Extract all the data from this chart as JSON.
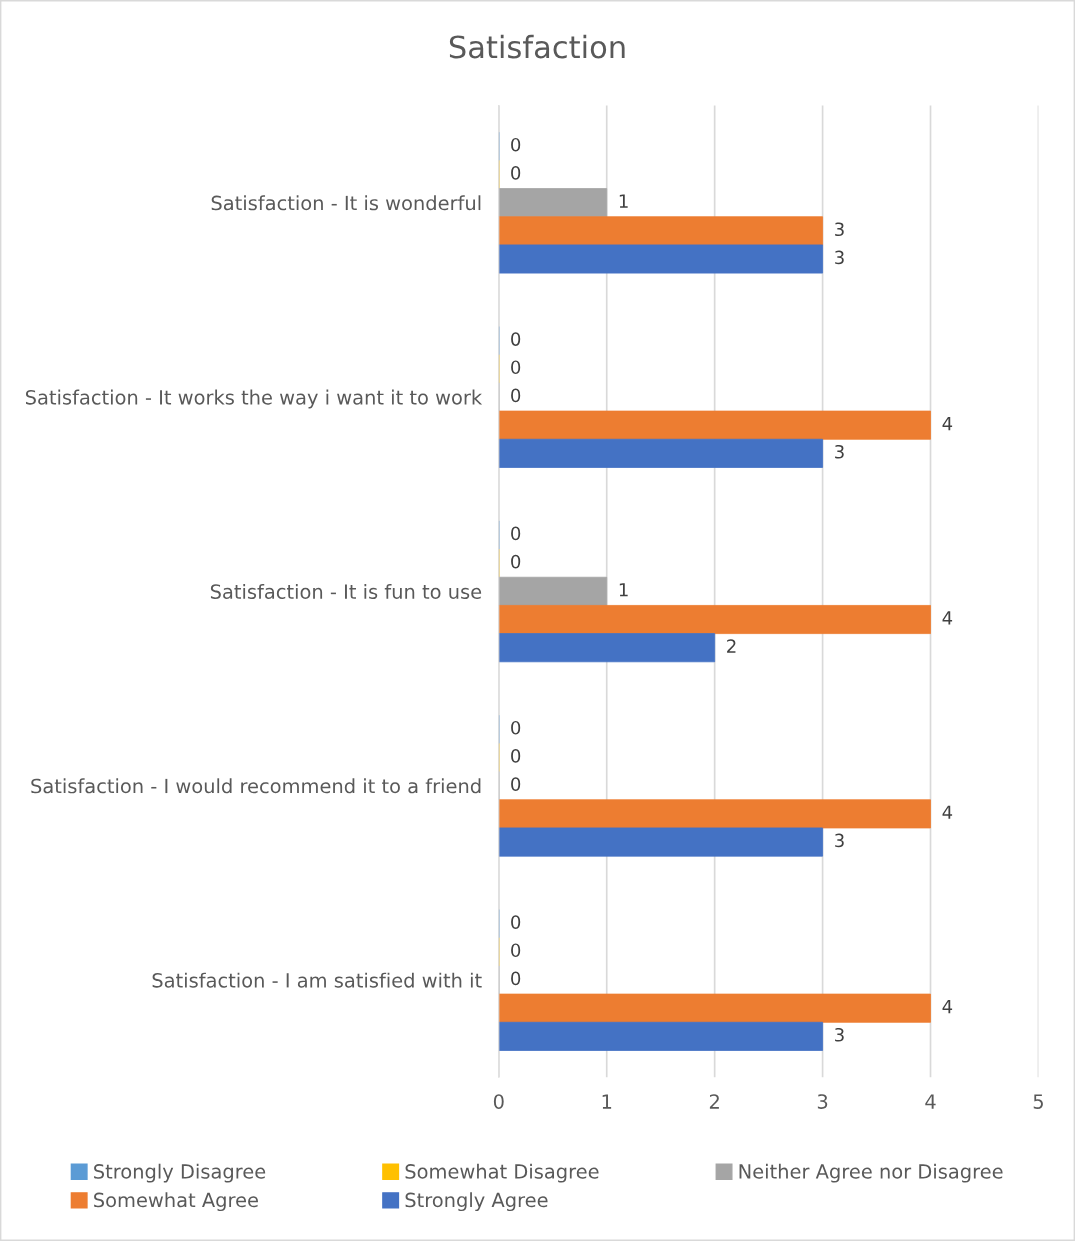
{
  "chart_data": {
    "type": "bar",
    "orientation": "horizontal",
    "title": "Satisfaction",
    "categories": [
      "Satisfaction - It is wonderful",
      "Satisfaction - It works the way i want it to work",
      "Satisfaction - It is fun to use",
      "Satisfaction - I would recommend it to a friend",
      "Satisfaction - I am satisfied with it"
    ],
    "series": [
      {
        "name": "Strongly Disagree",
        "color": "#5b9bd5",
        "values": [
          0,
          0,
          0,
          0,
          0
        ]
      },
      {
        "name": "Somewhat Disagree",
        "color": "#ffc000",
        "values": [
          0,
          0,
          0,
          0,
          0
        ]
      },
      {
        "name": "Neither Agree nor Disagree",
        "color": "#a5a5a5",
        "values": [
          1,
          0,
          1,
          0,
          0
        ]
      },
      {
        "name": "Somewhat Agree",
        "color": "#ed7d31",
        "values": [
          3,
          4,
          4,
          4,
          4
        ]
      },
      {
        "name": "Strongly Agree",
        "color": "#4472c4",
        "values": [
          3,
          3,
          2,
          3,
          3
        ]
      }
    ],
    "xlim": [
      0,
      5
    ],
    "xticks": [
      0,
      1,
      2,
      3,
      4,
      5
    ],
    "grid": "x",
    "data_labels": true,
    "legend": "bottom"
  }
}
